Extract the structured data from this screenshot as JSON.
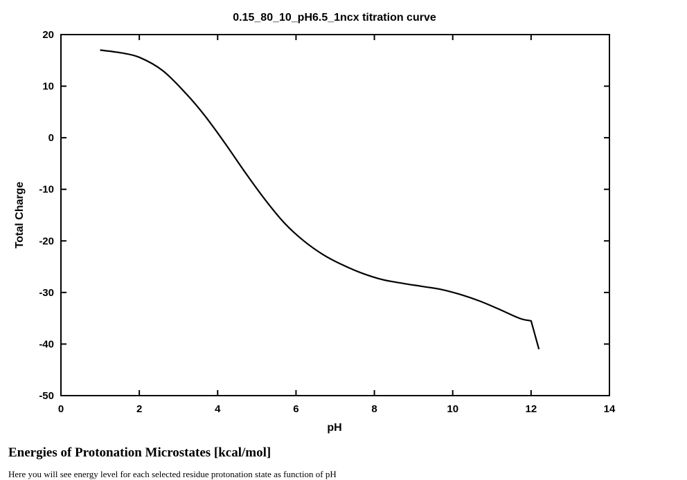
{
  "chart_data": {
    "type": "line",
    "title": "0.15_80_10_pH6.5_1ncx titration curve",
    "xlabel": "pH",
    "ylabel": "Total Charge",
    "xlim": [
      0,
      14
    ],
    "ylim": [
      -50,
      20
    ],
    "xticks": [
      0,
      2,
      4,
      6,
      8,
      10,
      12,
      14
    ],
    "yticks": [
      20,
      10,
      0,
      -10,
      -20,
      -30,
      -40,
      -50
    ],
    "grid": false,
    "legend": "none",
    "series": [
      {
        "color": "#000000",
        "x": [
          1.0,
          1.5,
          2.0,
          2.6,
          3.2,
          3.7,
          4.2,
          4.7,
          5.2,
          5.7,
          6.2,
          6.7,
          7.2,
          7.7,
          8.2,
          8.7,
          9.2,
          9.7,
          10.2,
          10.7,
          11.2,
          11.7,
          12.0,
          12.2
        ],
        "y": [
          17.0,
          16.5,
          15.6,
          13.0,
          8.5,
          4.0,
          -1.2,
          -6.7,
          -11.9,
          -16.5,
          -20.0,
          -22.7,
          -24.7,
          -26.3,
          -27.5,
          -28.2,
          -28.8,
          -29.4,
          -30.4,
          -31.7,
          -33.3,
          -35.0,
          -35.5,
          -41.0
        ]
      }
    ]
  },
  "section": {
    "heading": "Energies of Protonation Microstates [kcal/mol]",
    "text": "Here you will see energy level for each selected residue protonation state as function of pH"
  }
}
